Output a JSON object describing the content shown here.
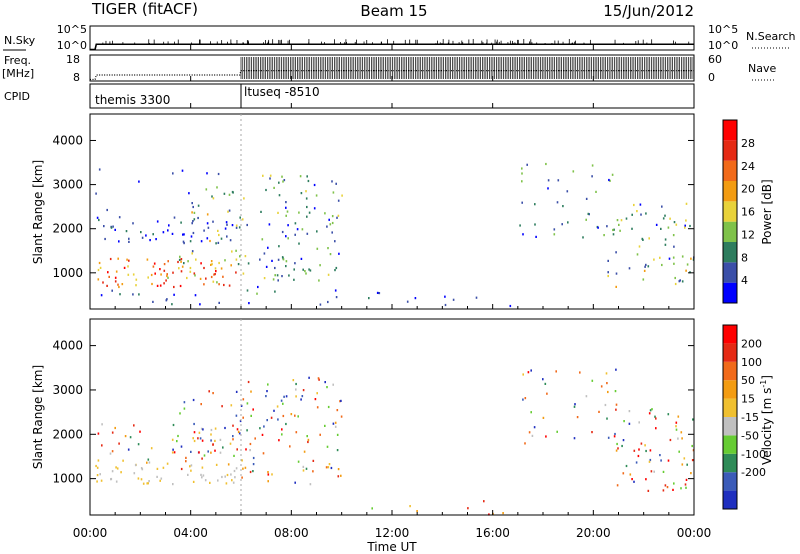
{
  "header": {
    "title": "TIGER (fitACF)",
    "beam": "Beam 15",
    "date": "15/Jun/2012"
  },
  "chart_data": [
    {
      "type": "line",
      "name": "noise-panel",
      "left_label": "N.Sky",
      "right_label": "N.Search",
      "left_ticks": [
        "10^5",
        "10^0"
      ],
      "right_ticks": [
        "10^5",
        "10^0"
      ],
      "ylim": [
        0,
        5
      ],
      "scale": "log",
      "xlim": [
        0,
        24
      ],
      "series": [
        {
          "values": [
            [
              0,
              0.1
            ],
            [
              0.2,
              0.1
            ],
            [
              0.25,
              1.2
            ],
            [
              24,
              1.2
            ]
          ]
        }
      ]
    },
    {
      "type": "line",
      "name": "frequency-panel",
      "left_label": "Freq.",
      "left_unit": "[MHz]",
      "left_ticks": [
        "18",
        "8"
      ],
      "right_label": "Nave",
      "right_ticks": [
        "60",
        "0"
      ],
      "ylim": [
        8,
        18
      ],
      "right_ylim": [
        0,
        60
      ],
      "xlim": [
        0,
        24
      ],
      "series": [
        {
          "values": [
            [
              0,
              8.6
            ],
            [
              0.2,
              8.6
            ],
            [
              0.25,
              10.3
            ],
            [
              5.95,
              10.3
            ],
            [
              6.0,
              12.0
            ],
            [
              24,
              12.0
            ]
          ]
        }
      ]
    },
    {
      "type": "table",
      "name": "cpid-panel",
      "label": "CPID",
      "segments": [
        {
          "start": 0.1,
          "text": "themis 3300"
        },
        {
          "start": 6.0,
          "text": "ltuseq -8510"
        }
      ]
    },
    {
      "type": "heatmap",
      "name": "power-panel",
      "ylabel": "Slant Range [km]",
      "yticks": [
        1000,
        2000,
        3000,
        4000
      ],
      "ylim": [
        180,
        4600
      ],
      "xlim": [
        0,
        24
      ],
      "colorbar": {
        "label": "Power [dB]",
        "ticks": [
          4,
          8,
          12,
          16,
          20,
          24,
          28
        ],
        "range": [
          0,
          32
        ],
        "colors": [
          "#0000ff",
          "#3b4fa8",
          "#2e7d5e",
          "#7fc24a",
          "#e8d23a",
          "#f39c12",
          "#f16a1a",
          "#e52a14",
          "#ff0000"
        ]
      },
      "regions": [
        {
          "t": [
            0.2,
            6.0
          ],
          "r": [
            700,
            1350
          ],
          "density": 0.95,
          "levels": [
            14,
            30
          ]
        },
        {
          "t": [
            0.2,
            6.0
          ],
          "r": [
            1600,
            2300
          ],
          "density": 0.55,
          "levels": [
            0,
            8
          ]
        },
        {
          "t": [
            0.2,
            6.0
          ],
          "r": [
            2300,
            3400
          ],
          "density": 0.08,
          "levels": [
            0,
            8
          ]
        },
        {
          "t": [
            0.2,
            6.0
          ],
          "r": [
            300,
            700
          ],
          "density": 0.25,
          "levels": [
            2,
            8
          ]
        },
        {
          "t": [
            3.5,
            6.2
          ],
          "r": [
            1200,
            3000
          ],
          "density": 0.35,
          "levels": [
            6,
            20
          ]
        },
        {
          "t": [
            6.0,
            10.0
          ],
          "r": [
            900,
            3300
          ],
          "density": 0.45,
          "levels": [
            2,
            16
          ]
        },
        {
          "t": [
            6.0,
            11.0
          ],
          "r": [
            300,
            900
          ],
          "density": 0.2,
          "levels": [
            2,
            14
          ]
        },
        {
          "t": [
            11.0,
            17.0
          ],
          "r": [
            200,
            600
          ],
          "density": 0.18,
          "levels": [
            0,
            8
          ]
        },
        {
          "t": [
            17.0,
            21.0
          ],
          "r": [
            1800,
            3500
          ],
          "density": 0.25,
          "levels": [
            2,
            14
          ]
        },
        {
          "t": [
            20.5,
            24.0
          ],
          "r": [
            700,
            2600
          ],
          "density": 0.45,
          "levels": [
            2,
            20
          ]
        }
      ]
    },
    {
      "type": "heatmap",
      "name": "velocity-panel",
      "ylabel": "Slant Range [km]",
      "yticks": [
        1000,
        2000,
        3000,
        4000
      ],
      "ylim": [
        180,
        4600
      ],
      "xlim": [
        0,
        24
      ],
      "xticks": [
        "00:00",
        "04:00",
        "08:00",
        "12:00",
        "16:00",
        "20:00",
        "00:00"
      ],
      "xlabel": "Time UT",
      "colorbar": {
        "label": "Velocity [m s",
        "label_sup": "-1",
        "label_end": "]",
        "ticks": [
          200,
          100,
          50,
          15,
          -15,
          -50,
          -100,
          -200
        ],
        "colors": [
          "#1f2fbf",
          "#3b5bb8",
          "#2e8b57",
          "#66cc33",
          "#c0c0c0",
          "#f0c030",
          "#f39c12",
          "#f16a1a",
          "#e52a14",
          "#ff0000"
        ]
      },
      "regions": [
        {
          "t": [
            0.2,
            6.0
          ],
          "r": [
            900,
            1350
          ],
          "density": 0.9,
          "levels": [
            4,
            5
          ]
        },
        {
          "t": [
            0.2,
            6.0
          ],
          "r": [
            1350,
            2300
          ],
          "density": 0.4,
          "levels": [
            0,
            9
          ]
        },
        {
          "t": [
            3.5,
            6.2
          ],
          "r": [
            1200,
            3000
          ],
          "density": 0.35,
          "levels": [
            0,
            9
          ]
        },
        {
          "t": [
            6.0,
            10.0
          ],
          "r": [
            900,
            3300
          ],
          "density": 0.45,
          "levels": [
            0,
            9
          ]
        },
        {
          "t": [
            11.0,
            17.0
          ],
          "r": [
            200,
            600
          ],
          "density": 0.15,
          "levels": [
            3,
            9
          ]
        },
        {
          "t": [
            17.0,
            21.0
          ],
          "r": [
            1800,
            3500
          ],
          "density": 0.25,
          "levels": [
            0,
            9
          ]
        },
        {
          "t": [
            20.5,
            24.0
          ],
          "r": [
            700,
            2600
          ],
          "density": 0.45,
          "levels": [
            0,
            9
          ]
        }
      ]
    }
  ]
}
